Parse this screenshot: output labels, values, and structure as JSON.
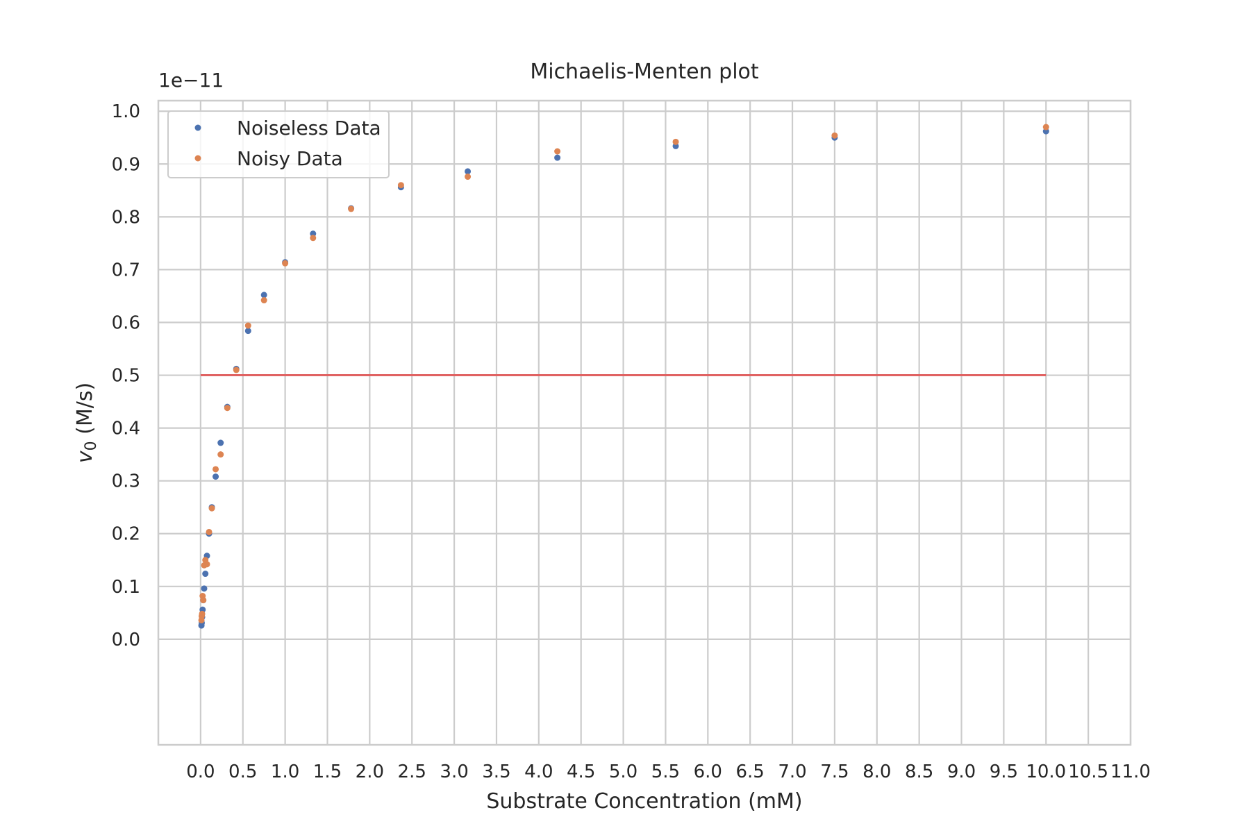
{
  "chart_data": {
    "type": "scatter",
    "title": "Michaelis-Menten plot",
    "xlabel": "Substrate Concentration (mM)",
    "ylabel_main": "v",
    "ylabel_sub": "0",
    "ylabel_rest": " (M/s)",
    "y_offset_text": "1e−11",
    "xlim": [
      -0.5,
      11.0
    ],
    "ylim": [
      -0.2,
      1.02
    ],
    "x_ticks": [
      0.0,
      0.5,
      1.0,
      1.5,
      2.0,
      2.5,
      3.0,
      3.5,
      4.0,
      4.5,
      5.0,
      5.5,
      6.0,
      6.5,
      7.0,
      7.5,
      8.0,
      8.5,
      9.0,
      9.5,
      10.0,
      10.5,
      11.0
    ],
    "x_tick_labels": [
      "0.0",
      "0.5",
      "1.0",
      "1.5",
      "2.0",
      "2.5",
      "3.0",
      "3.5",
      "4.0",
      "4.5",
      "5.0",
      "5.5",
      "6.0",
      "6.5",
      "7.0",
      "7.5",
      "8.0",
      "8.5",
      "9.0",
      "9.5",
      "10.0",
      "10.5",
      "11.0"
    ],
    "y_ticks": [
      0.0,
      0.1,
      0.2,
      0.3,
      0.4,
      0.5,
      0.6,
      0.7,
      0.8,
      0.9,
      1.0
    ],
    "y_tick_labels": [
      "0.0",
      "0.1",
      "0.2",
      "0.3",
      "0.4",
      "0.5",
      "0.6",
      "0.7",
      "0.8",
      "0.9",
      "1.0"
    ],
    "grid": true,
    "legend_position": "top-left",
    "series": [
      {
        "name": "Noiseless Data",
        "color": "#4c72b0",
        "x": [
          0.01,
          0.0133,
          0.0178,
          0.0237,
          0.0316,
          0.0422,
          0.0562,
          0.075,
          0.1,
          0.133,
          0.178,
          0.237,
          0.316,
          0.422,
          0.562,
          0.75,
          1.0,
          1.33,
          1.78,
          2.37,
          3.16,
          4.22,
          5.62,
          7.5,
          10.0
        ],
        "y": [
          0.026,
          0.031,
          0.042,
          0.056,
          0.074,
          0.096,
          0.124,
          0.158,
          0.2,
          0.25,
          0.308,
          0.372,
          0.44,
          0.512,
          0.584,
          0.652,
          0.714,
          0.768,
          0.816,
          0.856,
          0.886,
          0.912,
          0.934,
          0.95,
          0.962
        ]
      },
      {
        "name": "Noisy Data",
        "color": "#dd8452",
        "x": [
          0.01,
          0.0133,
          0.0178,
          0.0237,
          0.0316,
          0.0422,
          0.0562,
          0.075,
          0.1,
          0.133,
          0.178,
          0.237,
          0.316,
          0.422,
          0.562,
          0.75,
          1.0,
          1.33,
          1.78,
          2.37,
          3.16,
          4.22,
          5.62,
          7.5,
          10.0
        ],
        "y": [
          0.036,
          0.044,
          0.048,
          0.082,
          0.074,
          0.14,
          0.15,
          0.142,
          0.203,
          0.248,
          0.322,
          0.35,
          0.438,
          0.51,
          0.594,
          0.642,
          0.712,
          0.76,
          0.815,
          0.86,
          0.876,
          0.924,
          0.942,
          0.954,
          0.97
        ]
      }
    ],
    "reference_line": {
      "color": "#e06262",
      "y": 0.5,
      "x": [
        0.0,
        10.0
      ]
    }
  }
}
